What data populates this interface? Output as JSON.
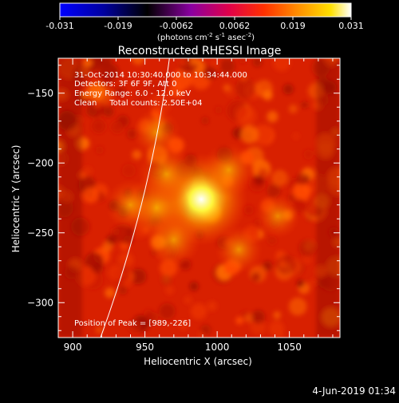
{
  "colors": {
    "background": "#000000",
    "text": "#ffffff",
    "limb": "#ffffff",
    "colormap": [
      "#0000ff",
      "#000000",
      "#9b00a8",
      "#ff0000",
      "#ff8c00",
      "#ffff00",
      "#ffffff"
    ]
  },
  "colorbar": {
    "ticks": [
      "-0.031",
      "-0.019",
      "-0.0062",
      "0.0062",
      "0.019",
      "0.031"
    ],
    "units_main": "(photons cm",
    "units_exp1": "-2",
    "units_mid": " s",
    "units_exp2": "-1",
    "units_end": " asec",
    "units_exp3": "-2",
    "units_close": ")"
  },
  "chart_data": {
    "type": "heatmap",
    "title": "Reconstructed RHESSI Image",
    "xlabel": "Heliocentric X (arcsec)",
    "ylabel": "Heliocentric Y (arcsec)",
    "xlim": [
      890,
      1085
    ],
    "ylim": [
      -325,
      -125
    ],
    "xticks": [
      900,
      950,
      1000,
      1050
    ],
    "yticks": [
      -150,
      -200,
      -250,
      -300
    ],
    "value_range": [
      -0.031,
      0.031
    ],
    "peak": [
      989,
      -226
    ],
    "sources": [
      {
        "x": 989,
        "y": -226,
        "strength": 1.0
      },
      {
        "x": 958,
        "y": -232,
        "strength": 0.6
      },
      {
        "x": 965,
        "y": -208,
        "strength": 0.45
      },
      {
        "x": 1008,
        "y": -205,
        "strength": 0.4
      },
      {
        "x": 970,
        "y": -255,
        "strength": 0.4
      },
      {
        "x": 940,
        "y": -230,
        "strength": 0.35
      },
      {
        "x": 1015,
        "y": -262,
        "strength": 0.3
      },
      {
        "x": 958,
        "y": -178,
        "strength": 0.3
      },
      {
        "x": 1042,
        "y": -238,
        "strength": 0.25
      }
    ],
    "annotations": [
      "31-Oct-2014 10:30:40.000 to 10:34:44.000",
      "Detectors: 3F 6F 9F, Att 0",
      "Energy Range: 6.0 - 12.0 keV",
      "Clean     Total counts: 2.50E+04",
      "Position of Peak = [989,-226]"
    ]
  },
  "footer": {
    "date": "4-Jun-2019 01:34"
  }
}
